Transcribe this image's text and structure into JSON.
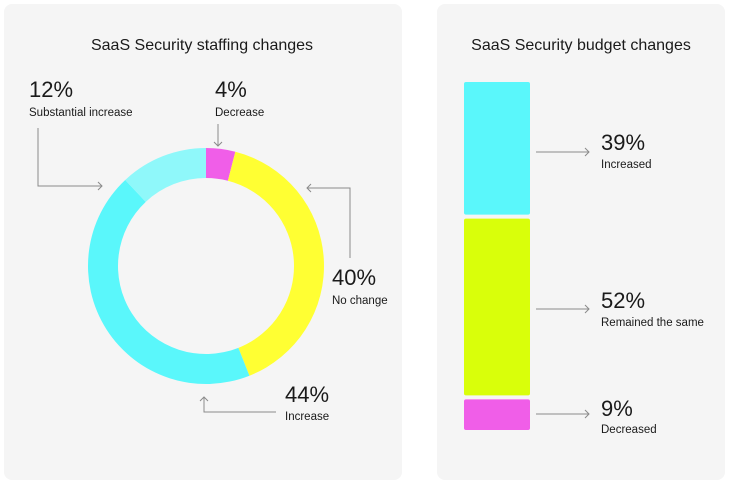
{
  "chart_data": [
    {
      "type": "donut",
      "title": "SaaS Security staffing changes",
      "categories": [
        "Decrease",
        "No change",
        "Increase",
        "Substantial increase"
      ],
      "values": [
        4,
        40,
        44,
        12
      ],
      "labels": [
        "4%",
        "40%",
        "44%",
        "12%"
      ],
      "colors": [
        "#f05ee8",
        "#ffff33",
        "#5af7fb",
        "#8ff8fa"
      ]
    },
    {
      "type": "bar",
      "stacked": true,
      "title": "SaaS Security budget changes",
      "categories": [
        "Increased",
        "Remained the same",
        "Decreased"
      ],
      "values": [
        39,
        52,
        9
      ],
      "labels": [
        "39%",
        "52%",
        "9%"
      ],
      "colors": [
        "#5af7fb",
        "#d9ff0a",
        "#f05ee8"
      ]
    }
  ]
}
